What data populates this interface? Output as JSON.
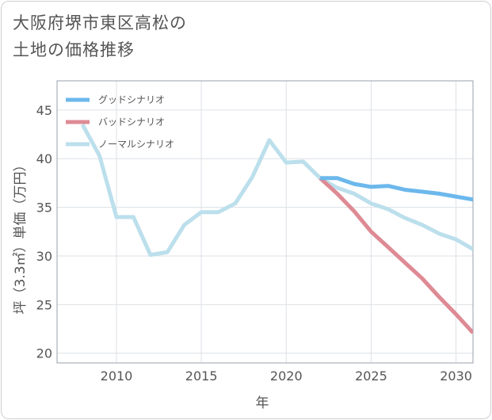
{
  "title": {
    "line1": "大阪府堺市東区高松の",
    "line2": "土地の価格推移"
  },
  "chart_data": {
    "type": "line",
    "xlabel": "年",
    "ylabel": "坪（3.3㎡）単価（万円）",
    "xlim": [
      2006.5,
      2031
    ],
    "ylim": [
      19,
      48
    ],
    "x_ticks": [
      2010,
      2015,
      2020,
      2025,
      2030
    ],
    "y_ticks": [
      20,
      25,
      30,
      35,
      40,
      45
    ],
    "legend_position": "top-left",
    "series": [
      {
        "name": "グッドシナリオ",
        "color": "#6cb8ec",
        "x": [
          2022,
          2023,
          2024,
          2025,
          2026,
          2027,
          2028,
          2029,
          2030,
          2031
        ],
        "values": [
          38.0,
          38.0,
          37.4,
          37.1,
          37.2,
          36.8,
          36.6,
          36.4,
          36.1,
          35.8
        ]
      },
      {
        "name": "バッドシナリオ",
        "color": "#de8a94",
        "x": [
          2022,
          2023,
          2024,
          2025,
          2026,
          2027,
          2028,
          2029,
          2030,
          2031
        ],
        "values": [
          38.0,
          36.4,
          34.6,
          32.5,
          30.9,
          29.3,
          27.7,
          25.8,
          24.0,
          22.1
        ]
      },
      {
        "name": "ノーマルシナリオ",
        "color": "#bcdfec",
        "x": [
          2008,
          2009,
          2010,
          2011,
          2012,
          2013,
          2014,
          2015,
          2016,
          2017,
          2018,
          2019,
          2020,
          2021,
          2022,
          2023,
          2024,
          2025,
          2026,
          2027,
          2028,
          2029,
          2030,
          2031
        ],
        "values": [
          43.5,
          40.3,
          34.0,
          34.0,
          30.1,
          30.4,
          33.2,
          34.5,
          34.5,
          35.4,
          38.1,
          41.9,
          39.6,
          39.7,
          38.0,
          37.0,
          36.4,
          35.4,
          34.8,
          33.9,
          33.2,
          32.3,
          31.7,
          30.7
        ]
      }
    ]
  }
}
